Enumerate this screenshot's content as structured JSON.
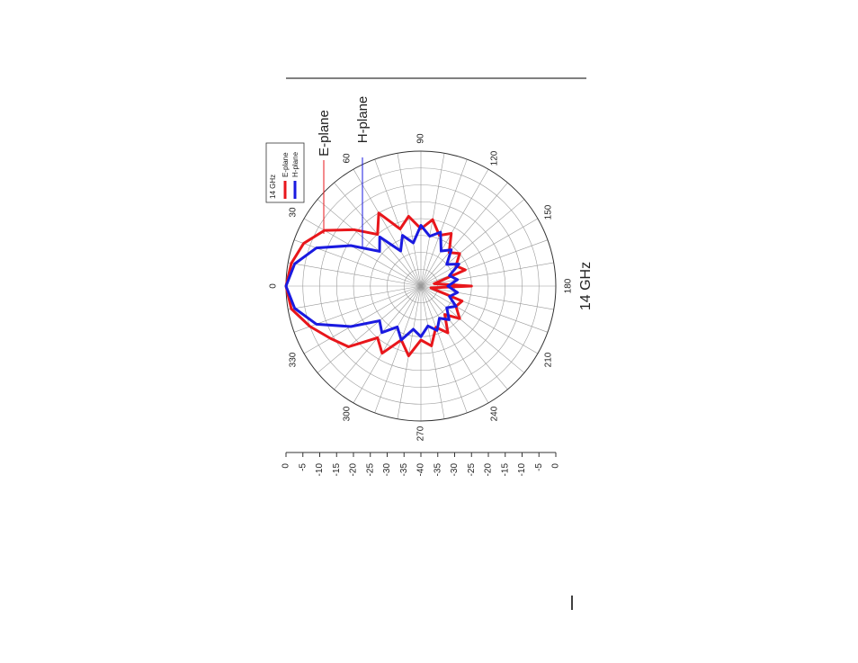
{
  "chart_data": {
    "type": "polar",
    "title": "14 GHz",
    "legend_title": "14 GHz",
    "annotations": [
      "E-plane",
      "H-plane"
    ],
    "theta": [
      0,
      10,
      20,
      30,
      40,
      50,
      60,
      70,
      80,
      90,
      100,
      110,
      120,
      130,
      140,
      150,
      160,
      170,
      180,
      190,
      200,
      210,
      220,
      230,
      240,
      250,
      260,
      270,
      280,
      290,
      300,
      310,
      320,
      330,
      340,
      350
    ],
    "series": [
      {
        "name": "E-plane",
        "color": "#e8161b",
        "values": [
          0,
          -1,
          -3,
          -7,
          -14,
          -20,
          -15,
          -22,
          -19,
          -23,
          -20,
          -24,
          -22,
          -27,
          -25,
          -28,
          -26,
          -36,
          -25,
          -37,
          -27,
          -28,
          -25,
          -29,
          -24,
          -27,
          -22,
          -24,
          -19,
          -23,
          -17,
          -20,
          -12,
          -9,
          -5,
          -1
        ]
      },
      {
        "name": "H-plane",
        "color": "#1a1ae0",
        "values": [
          0,
          -2,
          -7,
          -16,
          -24,
          -21,
          -28,
          -24,
          -27,
          -22,
          -25,
          -23,
          -28,
          -26,
          -30,
          -27,
          -31,
          -29,
          -32,
          -29,
          -31,
          -28,
          -30,
          -27,
          -29,
          -26,
          -28,
          -25,
          -27,
          -23,
          -26,
          -22,
          -24,
          -16,
          -7,
          -2
        ]
      }
    ],
    "rlim": [
      -40,
      0
    ],
    "rticks": [
      0,
      -5,
      -10,
      -15,
      -20,
      -25,
      -30,
      -35,
      -40,
      -35,
      -30,
      -25,
      -20,
      -15,
      -10,
      -5,
      0
    ],
    "thetaticks": [
      0,
      30,
      60,
      90,
      120,
      150,
      180,
      210,
      240,
      270,
      300,
      330
    ],
    "grid": true
  }
}
